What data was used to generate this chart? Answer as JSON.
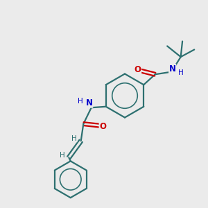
{
  "bg_color": "#ebebeb",
  "bond_color": "#2d7070",
  "bond_width": 1.6,
  "atom_colors": {
    "O": "#cc0000",
    "N": "#0000cc",
    "H_gray": "#2d7070"
  },
  "figsize": [
    3.0,
    3.0
  ],
  "dpi": 100,
  "xlim": [
    0,
    10
  ],
  "ylim": [
    0,
    10
  ]
}
